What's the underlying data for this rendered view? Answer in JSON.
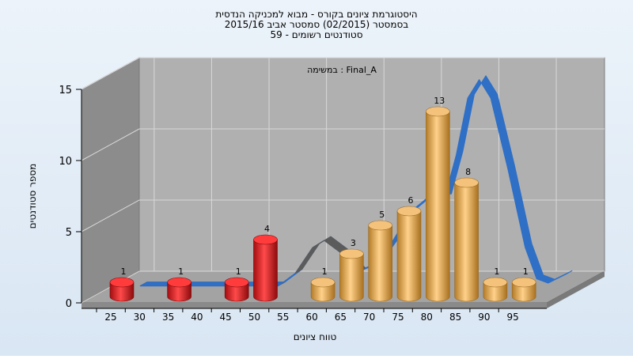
{
  "chart_data": {
    "type": "bar",
    "title_lines": [
      "היסטוגרמת ציונים בקורס - מבוא למכניקה הנדסית",
      "בסמסטר  (02/2015)  סמסטר אביב 2015/16",
      "סטודנטים רשומים - 59"
    ],
    "assignment_label": "במשימה : Final_A",
    "xlabel": "טווח ציונים",
    "ylabel": "מספר סטודנטים",
    "x_ticks": [
      "25",
      "30",
      "35",
      "40",
      "45",
      "50",
      "55",
      "60",
      "65",
      "70",
      "75",
      "80",
      "85",
      "90",
      "95"
    ],
    "y_ticks": [
      "0",
      "5",
      "10",
      "15"
    ],
    "ylim": [
      0,
      15
    ],
    "bars": [
      {
        "x": 25,
        "value": 1,
        "label": "1",
        "color": "red"
      },
      {
        "x": 35,
        "value": 1,
        "label": "1",
        "color": "red"
      },
      {
        "x": 45,
        "value": 1,
        "label": "1",
        "color": "red"
      },
      {
        "x": 50,
        "value": 4,
        "label": "4",
        "color": "red"
      },
      {
        "x": 60,
        "value": 1,
        "label": "1",
        "color": "orange"
      },
      {
        "x": 65,
        "value": 3,
        "label": "3",
        "color": "orange"
      },
      {
        "x": 70,
        "value": 5,
        "label": "5",
        "color": "orange"
      },
      {
        "x": 75,
        "value": 6,
        "label": "6",
        "color": "orange"
      },
      {
        "x": 80,
        "value": 13,
        "label": "13",
        "color": "orange"
      },
      {
        "x": 85,
        "value": 8,
        "label": "8",
        "color": "orange"
      },
      {
        "x": 90,
        "value": 1,
        "label": "1",
        "color": "orange"
      },
      {
        "x": 95,
        "value": 1,
        "label": "1",
        "color": "orange"
      }
    ],
    "curve": [
      {
        "x": 26,
        "y": 0.3
      },
      {
        "x": 30,
        "y": 0.3
      },
      {
        "x": 35,
        "y": 0.3
      },
      {
        "x": 40,
        "y": 0.3
      },
      {
        "x": 45,
        "y": 0.3
      },
      {
        "x": 50,
        "y": 0.3
      },
      {
        "x": 53,
        "y": 1.2
      },
      {
        "x": 56,
        "y": 3.0
      },
      {
        "x": 58,
        "y": 3.5
      },
      {
        "x": 61,
        "y": 2.6
      },
      {
        "x": 64,
        "y": 1.3
      },
      {
        "x": 67,
        "y": 1.8
      },
      {
        "x": 70,
        "y": 3.5
      },
      {
        "x": 73,
        "y": 5.5
      },
      {
        "x": 76,
        "y": 6.5
      },
      {
        "x": 79,
        "y": 6.5
      },
      {
        "x": 81,
        "y": 9.5
      },
      {
        "x": 83,
        "y": 13.5
      },
      {
        "x": 85,
        "y": 14.8
      },
      {
        "x": 87,
        "y": 13.5
      },
      {
        "x": 90,
        "y": 8.5
      },
      {
        "x": 93,
        "y": 3.0
      },
      {
        "x": 95,
        "y": 0.8
      },
      {
        "x": 97,
        "y": 0.5
      },
      {
        "x": 100,
        "y": 1.1
      }
    ],
    "colors": {
      "red_bar": "#e0191e",
      "orange_bar": "#e7a948",
      "curve_front": "#2f6fc6",
      "curve_back": "#5b5b5b",
      "wall": "#a9a9a9",
      "left_wall": "#8c8c8c",
      "floor": "#a3a3a3",
      "background": "#e3edf6"
    }
  }
}
